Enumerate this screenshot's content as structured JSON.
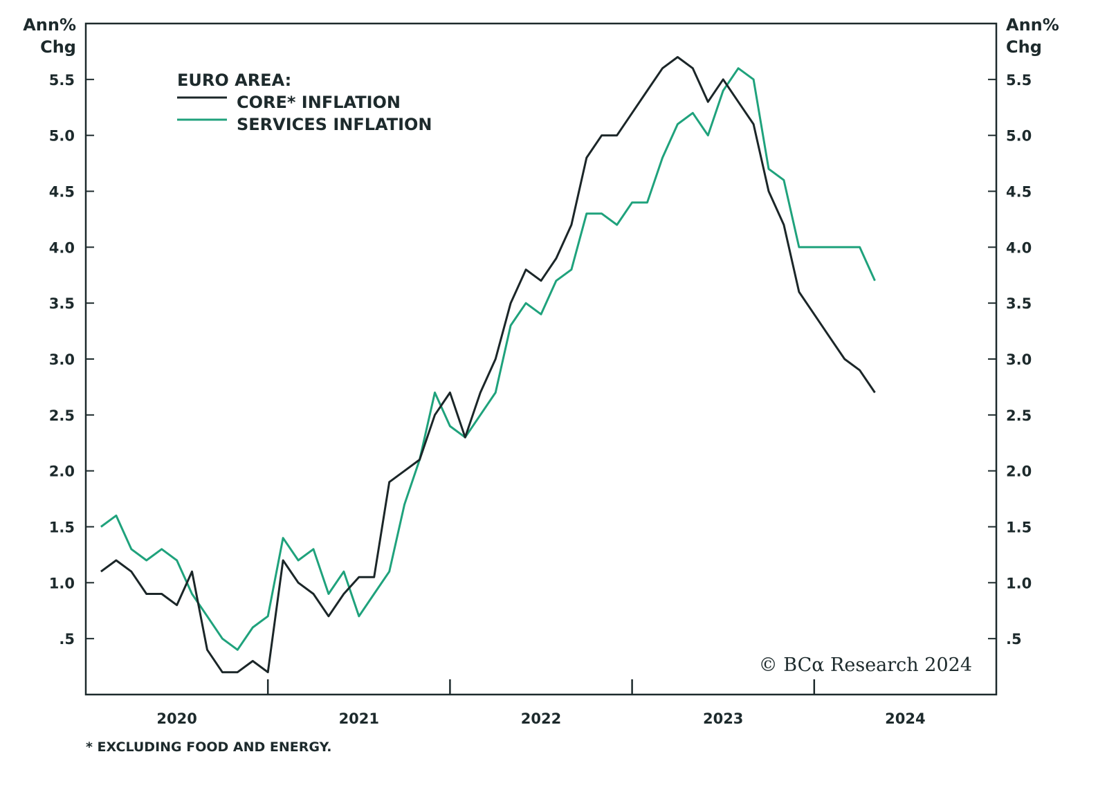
{
  "chart_data": {
    "type": "line",
    "title": "",
    "legend_heading": "EURO AREA:",
    "legend_placement": "top-left",
    "y_axis_label_left": [
      "Ann%",
      "Chg"
    ],
    "y_axis_label_right": [
      "Ann%",
      "Chg"
    ],
    "ylim": [
      0,
      6
    ],
    "yticks": [
      0.5,
      1.0,
      1.5,
      2.0,
      2.5,
      3.0,
      3.5,
      4.0,
      4.5,
      5.0,
      5.5
    ],
    "ytick_labels": [
      ".5",
      "1.0",
      "1.5",
      "2.0",
      "2.5",
      "3.0",
      "3.5",
      "4.0",
      "4.5",
      "5.0",
      "5.5"
    ],
    "xlim": [
      "2020-01",
      "2024-12"
    ],
    "xtick_labels": [
      "2020",
      "2021",
      "2022",
      "2023",
      "2024"
    ],
    "grid": false,
    "x": [
      "2020-01",
      "2020-02",
      "2020-03",
      "2020-04",
      "2020-05",
      "2020-06",
      "2020-07",
      "2020-08",
      "2020-09",
      "2020-10",
      "2020-11",
      "2020-12",
      "2021-01",
      "2021-02",
      "2021-03",
      "2021-04",
      "2021-05",
      "2021-06",
      "2021-07",
      "2021-08",
      "2021-09",
      "2021-10",
      "2021-11",
      "2021-12",
      "2022-01",
      "2022-02",
      "2022-03",
      "2022-04",
      "2022-05",
      "2022-06",
      "2022-07",
      "2022-08",
      "2022-09",
      "2022-10",
      "2022-11",
      "2022-12",
      "2023-01",
      "2023-02",
      "2023-03",
      "2023-04",
      "2023-05",
      "2023-06",
      "2023-07",
      "2023-08",
      "2023-09",
      "2023-10",
      "2023-11",
      "2023-12",
      "2024-01",
      "2024-02",
      "2024-03",
      "2024-04"
    ],
    "series": [
      {
        "name": "CORE* INFLATION",
        "color": "#1b2628",
        "values": [
          1.1,
          1.2,
          1.1,
          0.9,
          0.9,
          0.8,
          1.1,
          0.4,
          0.2,
          0.2,
          0.3,
          0.2,
          1.2,
          1.0,
          0.9,
          0.7,
          0.9,
          1.05,
          1.05,
          1.9,
          2.0,
          2.1,
          2.5,
          2.7,
          2.3,
          2.7,
          3.0,
          3.5,
          3.8,
          3.7,
          3.9,
          4.2,
          4.8,
          5.0,
          5.0,
          5.2,
          5.4,
          5.6,
          5.7,
          5.6,
          5.3,
          5.5,
          5.3,
          5.1,
          4.5,
          4.2,
          3.6,
          3.4,
          3.2,
          3.0,
          2.9,
          2.7
        ]
      },
      {
        "name": "SERVICES INFLATION",
        "color": "#1fa27c",
        "values": [
          1.5,
          1.6,
          1.3,
          1.2,
          1.3,
          1.2,
          0.9,
          0.7,
          0.5,
          0.4,
          0.6,
          0.7,
          1.4,
          1.2,
          1.3,
          0.9,
          1.1,
          0.7,
          0.9,
          1.1,
          1.7,
          2.1,
          2.7,
          2.4,
          2.3,
          2.5,
          2.7,
          3.3,
          3.5,
          3.4,
          3.7,
          3.8,
          4.3,
          4.3,
          4.2,
          4.4,
          4.4,
          4.8,
          5.1,
          5.2,
          5.0,
          5.4,
          5.6,
          5.5,
          4.7,
          4.6,
          4.0,
          4.0,
          4.0,
          4.0,
          4.0,
          3.7
        ]
      }
    ],
    "footnote": "* EXCLUDING FOOD AND ENERGY.",
    "copyright": "© BCα Research 2024"
  }
}
